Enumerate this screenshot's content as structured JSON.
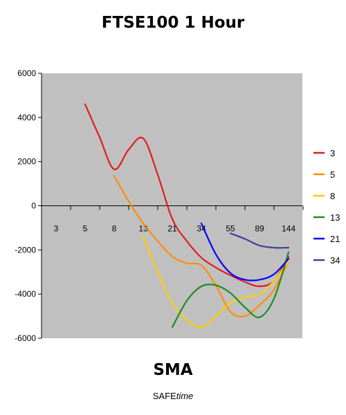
{
  "chart_data": {
    "type": "line",
    "title": "FTSE100 1 Hour",
    "xlabel": "SMA",
    "subtitle_plain": "SAFE",
    "subtitle_italic": "time",
    "categories": [
      "3",
      "5",
      "8",
      "13",
      "21",
      "34",
      "55",
      "89",
      "144"
    ],
    "ylim": [
      -6000,
      6000
    ],
    "yticks": [
      -6000,
      -4000,
      -2000,
      0,
      2000,
      4000,
      6000
    ],
    "ytick_labels": [
      "-6000",
      "-4000",
      "-2000",
      "0",
      "2000",
      "4000",
      "6000"
    ],
    "grid": false,
    "legend_position": "right",
    "plot_background": "#c0c0c0",
    "series": [
      {
        "name": "3",
        "color": "#e31a1c",
        "x": [
          1,
          1.5,
          2,
          2.5,
          3,
          3.5,
          4,
          4.5,
          5,
          5.5,
          6,
          6.5,
          7,
          7.5,
          8
        ],
        "y": [
          4600,
          3100,
          1650,
          2550,
          3050,
          1400,
          -600,
          -1600,
          -2350,
          -2800,
          -3150,
          -3450,
          -3650,
          -3400,
          -2300
        ]
      },
      {
        "name": "5",
        "color": "#ff8c00",
        "x": [
          2,
          2.5,
          3,
          3.5,
          4,
          4.5,
          5,
          5.5,
          6,
          6.5,
          7,
          7.5,
          8
        ],
        "y": [
          1350,
          200,
          -800,
          -1600,
          -2300,
          -2600,
          -2700,
          -3600,
          -4800,
          -5000,
          -4500,
          -3800,
          -2500
        ]
      },
      {
        "name": "8",
        "color": "#ffcc00",
        "x": [
          3,
          3.5,
          4,
          4.5,
          5,
          5.5,
          6,
          6.5,
          7,
          7.5,
          8
        ],
        "y": [
          -1400,
          -3000,
          -4400,
          -5200,
          -5500,
          -5000,
          -4400,
          -4150,
          -4000,
          -3400,
          -2500
        ]
      },
      {
        "name": "13",
        "color": "#1e8c1e",
        "x": [
          4,
          4.5,
          5,
          5.5,
          6,
          6.5,
          7,
          7.5,
          8
        ],
        "y": [
          -5500,
          -4300,
          -3650,
          -3600,
          -3950,
          -4600,
          -5050,
          -4200,
          -2100
        ]
      },
      {
        "name": "21",
        "color": "#0000ff",
        "x": [
          5,
          5.5,
          6,
          6.5,
          7,
          7.5,
          8
        ],
        "y": [
          -800,
          -2200,
          -3050,
          -3350,
          -3350,
          -3100,
          -2400
        ]
      },
      {
        "name": "34",
        "color": "#3d3d9e",
        "x": [
          6,
          6.5,
          7,
          7.5,
          8
        ],
        "y": [
          -1250,
          -1500,
          -1800,
          -1900,
          -1900
        ]
      }
    ]
  }
}
